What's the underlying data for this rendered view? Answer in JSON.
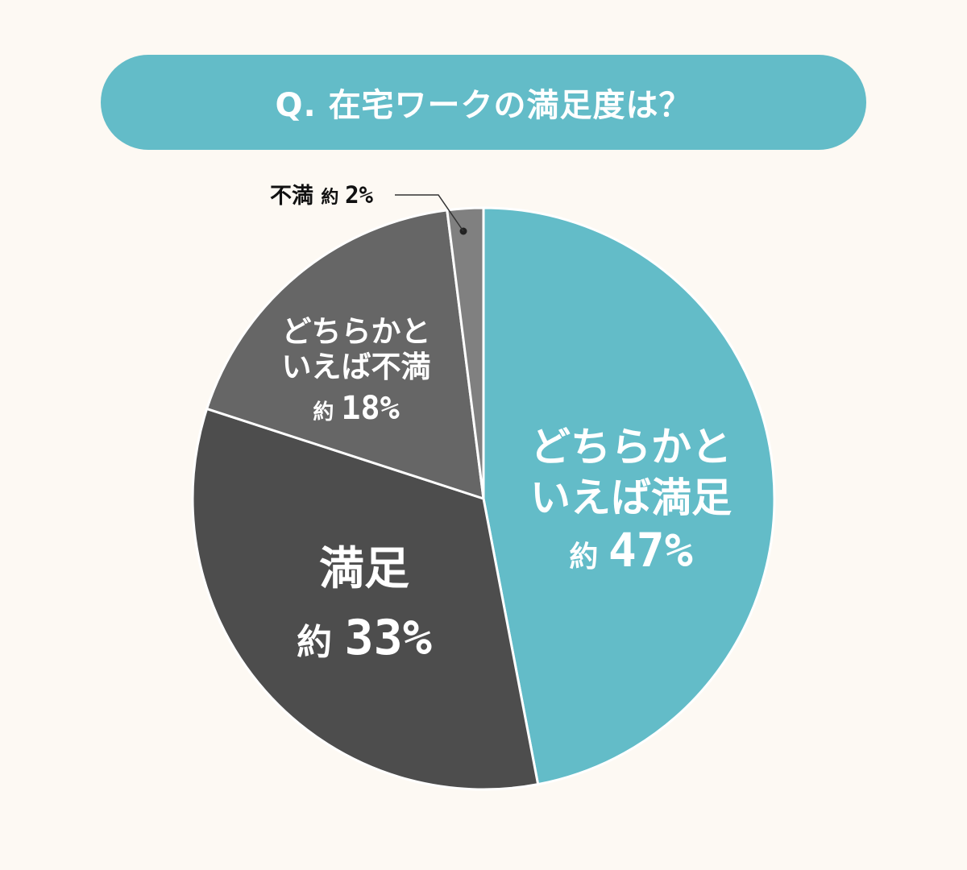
{
  "title": "Q. 在宅ワークの満足度は？",
  "colors": {
    "background": "#fdf9f3",
    "title_pill": "#63bcc8",
    "slice_separator": "#ffffff"
  },
  "chart_data": {
    "type": "pie",
    "title": "Q. 在宅ワークの満足度は？",
    "start_angle": "12 o'clock",
    "direction": "clockwise",
    "slices": [
      {
        "label_lines": [
          "どちらかと",
          "いえば満足"
        ],
        "prefix": "約",
        "value": 47,
        "value_text": "47%",
        "color": "#63bcc8"
      },
      {
        "label_lines": [
          "満足"
        ],
        "prefix": "約",
        "value": 33,
        "value_text": "33%",
        "color": "#4d4d4d"
      },
      {
        "label_lines": [
          "どちらかと",
          "いえば不満"
        ],
        "prefix": "約",
        "value": 18,
        "value_text": "18%",
        "color": "#666666"
      },
      {
        "label_lines": [
          "不満"
        ],
        "prefix": "約",
        "value": 2,
        "value_text": "2%",
        "color": "#808080"
      }
    ]
  }
}
